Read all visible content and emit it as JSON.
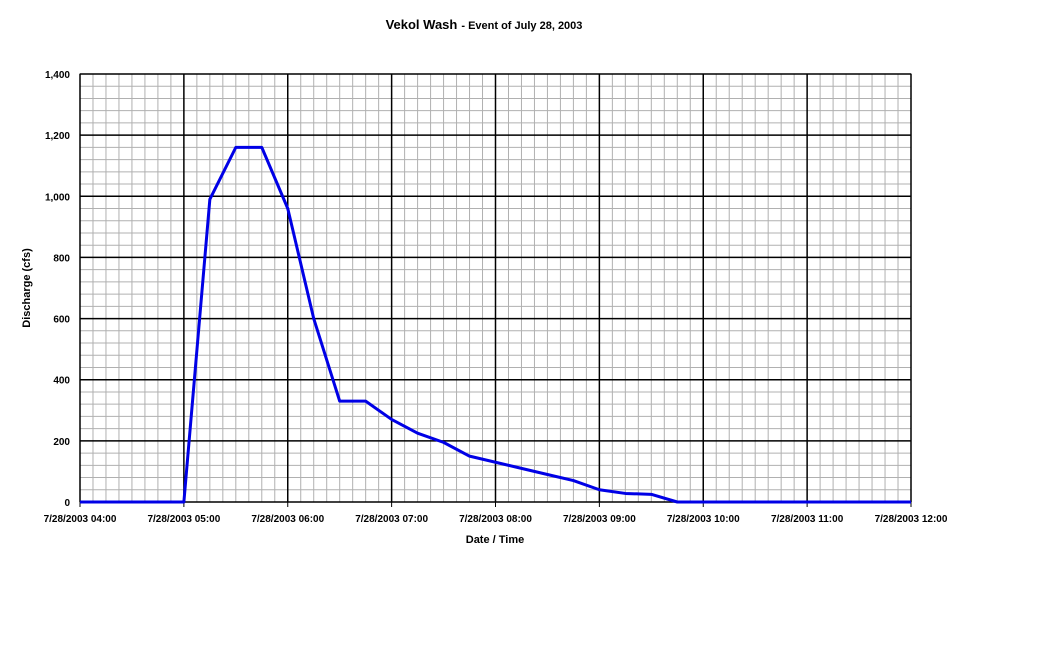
{
  "chart_data": {
    "type": "line",
    "title": "Vekol Wash",
    "subtitle": "- Event of July 28, 2003",
    "x_label": "Date / Time",
    "y_label": "Discharge (cfs)",
    "x": [
      "7/28/2003 04:00",
      "7/28/2003 05:00",
      "7/28/2003 05:15",
      "7/28/2003 05:30",
      "7/28/2003 05:45",
      "7/28/2003 06:00",
      "7/28/2003 06:15",
      "7/28/2003 06:30",
      "7/28/2003 06:45",
      "7/28/2003 07:00",
      "7/28/2003 07:15",
      "7/28/2003 07:30",
      "7/28/2003 07:45",
      "7/28/2003 08:00",
      "7/28/2003 08:15",
      "7/28/2003 08:30",
      "7/28/2003 08:45",
      "7/28/2003 09:00",
      "7/28/2003 09:15",
      "7/28/2003 09:30",
      "7/28/2003 09:45",
      "7/28/2003 12:00"
    ],
    "series": [
      {
        "name": "Discharge",
        "color": "#0000e6",
        "values": [
          0,
          0,
          990,
          1160,
          1160,
          960,
          600,
          330,
          330,
          270,
          225,
          195,
          150,
          130,
          110,
          90,
          70,
          40,
          28,
          25,
          0,
          0
        ]
      }
    ],
    "xlim": [
      "7/28/2003 04:00",
      "7/28/2003 12:00"
    ],
    "xticks": [
      "7/28/2003 04:00",
      "7/28/2003 05:00",
      "7/28/2003 06:00",
      "7/28/2003 07:00",
      "7/28/2003 08:00",
      "7/28/2003 09:00",
      "7/28/2003 10:00",
      "7/28/2003 11:00",
      "7/28/2003 12:00"
    ],
    "ylim": [
      0,
      1400
    ],
    "yticks": [
      0,
      200,
      400,
      600,
      800,
      {
        "value": 1000,
        "label": "1,000"
      },
      {
        "value": 1200,
        "label": "1,200"
      },
      {
        "value": 1400,
        "label": "1,400"
      }
    ],
    "grid": true
  }
}
